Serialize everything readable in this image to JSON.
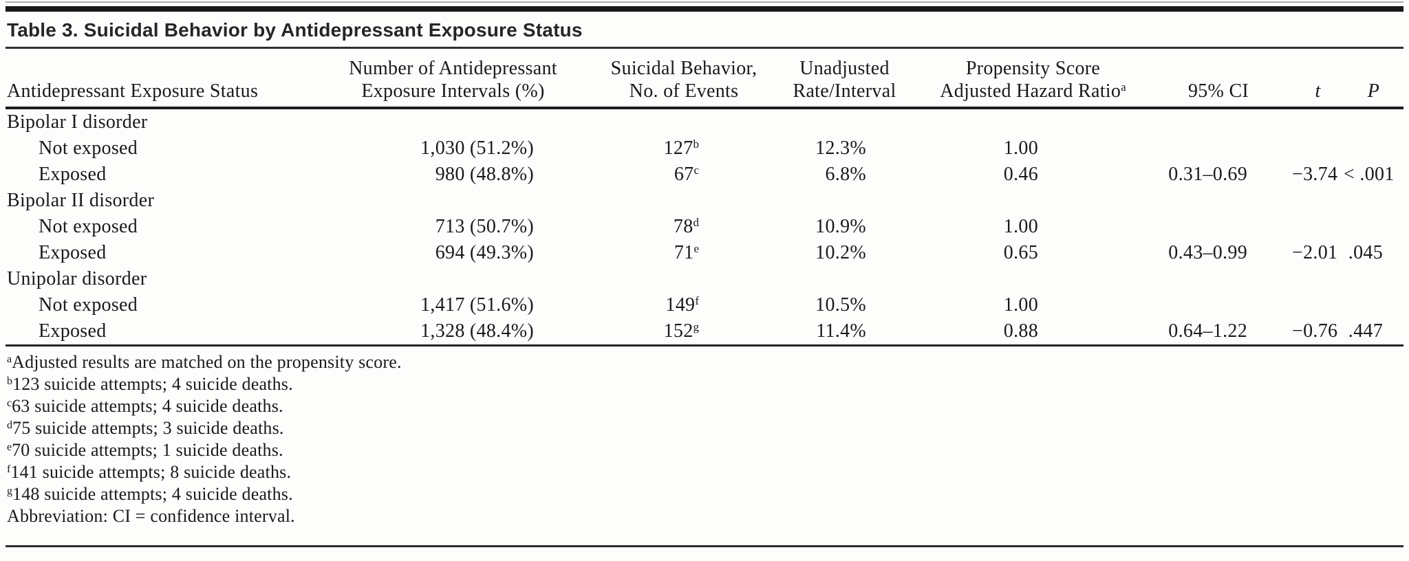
{
  "page": {
    "background_color": "#fdfdfc",
    "text_color": "#1a1a1a",
    "rule_color": "#222222"
  },
  "title": "Table 3. Suicidal Behavior by Antidepressant Exposure Status",
  "table": {
    "headers": {
      "status": "Antidepressant Exposure Status",
      "intervals_line1": "Number of Antidepressant",
      "intervals_line2": "Exposure Intervals (%)",
      "events_line1": "Suicidal Behavior,",
      "events_line2": "No. of Events",
      "rate_line1": "Unadjusted",
      "rate_line2": "Rate/Interval",
      "hr_line1": "Propensity Score",
      "hr_line2": "Adjusted Hazard Ratio",
      "hr_sup": "a",
      "ci": "95% CI",
      "t": "t",
      "p": "P"
    },
    "rows": [
      {
        "type": "group",
        "label": "Bipolar I disorder"
      },
      {
        "type": "data",
        "label": "Not exposed",
        "intervals": "1,030 (51.2%)",
        "events": "127",
        "events_sup": "b",
        "rate": "12.3%",
        "hazard_ratio": "1.00",
        "ci": "",
        "t": "",
        "p": ""
      },
      {
        "type": "data",
        "label": "Exposed",
        "intervals": "980 (48.8%)",
        "events": "67",
        "events_sup": "c",
        "rate": "6.8%",
        "hazard_ratio": "0.46",
        "ci": "0.31–0.69",
        "t": "−3.74",
        "p": "< .001"
      },
      {
        "type": "group",
        "label": "Bipolar II disorder"
      },
      {
        "type": "data",
        "label": "Not exposed",
        "intervals": "713 (50.7%)",
        "events": "78",
        "events_sup": "d",
        "rate": "10.9%",
        "hazard_ratio": "1.00",
        "ci": "",
        "t": "",
        "p": ""
      },
      {
        "type": "data",
        "label": "Exposed",
        "intervals": "694 (49.3%)",
        "events": "71",
        "events_sup": "e",
        "rate": "10.2%",
        "hazard_ratio": "0.65",
        "ci": "0.43–0.99",
        "t": "−2.01",
        "p": ".045"
      },
      {
        "type": "group",
        "label": "Unipolar disorder"
      },
      {
        "type": "data",
        "label": "Not exposed",
        "intervals": "1,417 (51.6%)",
        "events": "149",
        "events_sup": "f",
        "rate": "10.5%",
        "hazard_ratio": "1.00",
        "ci": "",
        "t": "",
        "p": ""
      },
      {
        "type": "data",
        "label": "Exposed",
        "intervals": "1,328 (48.4%)",
        "events": "152",
        "events_sup": "g",
        "rate": "11.4%",
        "hazard_ratio": "0.88",
        "ci": "0.64–1.22",
        "t": "−0.76",
        "p": ".447"
      }
    ],
    "footnotes": [
      {
        "sup": "a",
        "text": "Adjusted results are matched on the propensity score."
      },
      {
        "sup": "b",
        "text": "123 suicide attempts; 4 suicide deaths."
      },
      {
        "sup": "c",
        "text": "63 suicide attempts; 4 suicide deaths."
      },
      {
        "sup": "d",
        "text": "75 suicide attempts; 3 suicide deaths."
      },
      {
        "sup": "e",
        "text": "70 suicide attempts; 1 suicide deaths."
      },
      {
        "sup": "f",
        "text": "141 suicide attempts; 8 suicide deaths."
      },
      {
        "sup": "g",
        "text": "148 suicide attempts; 4 suicide deaths."
      },
      {
        "sup": "",
        "text": "Abbreviation: CI = confidence interval."
      }
    ]
  }
}
